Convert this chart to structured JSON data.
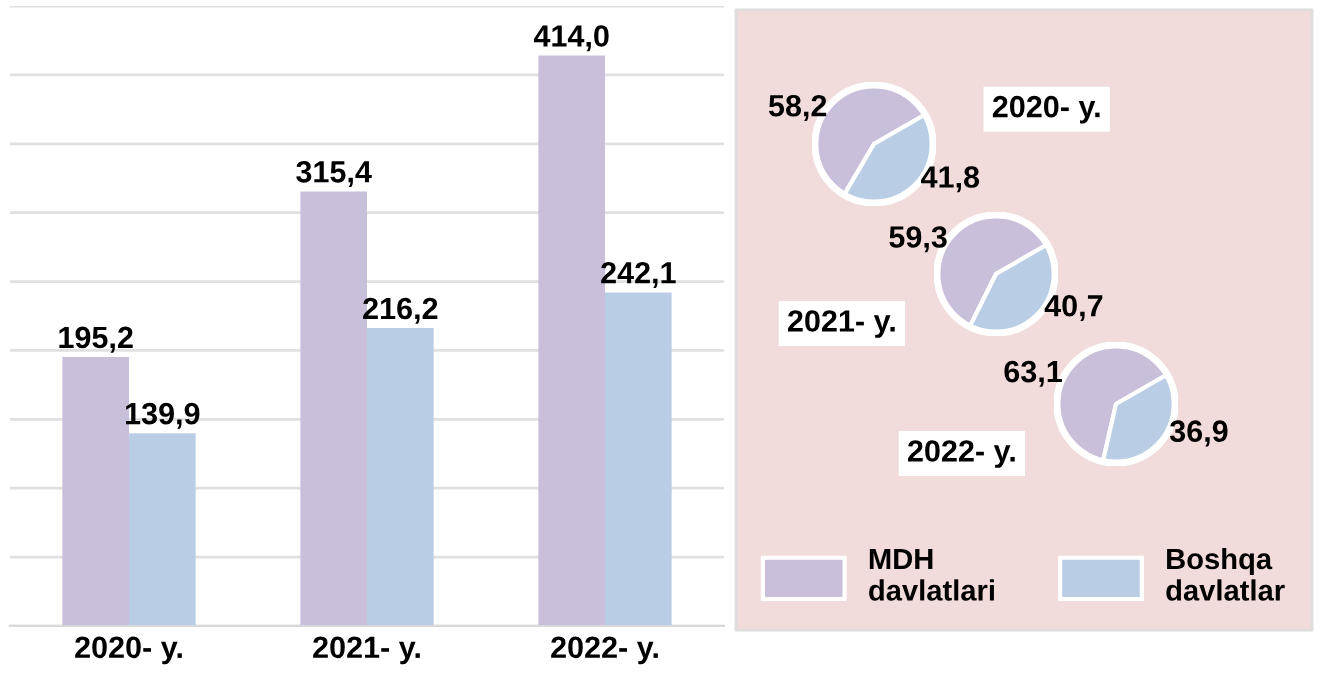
{
  "chart_data": [
    {
      "type": "bar",
      "categories": [
        "2020- y.",
        "2021- y.",
        "2022- y."
      ],
      "series": [
        {
          "color": "#c9bfdb",
          "values": [
            195.2,
            315.4,
            414.0
          ],
          "value_labels": [
            "195,2",
            "315,4",
            "414,0"
          ]
        },
        {
          "color": "#b9cde4",
          "values": [
            139.9,
            216.2,
            242.1
          ],
          "value_labels": [
            "139,9",
            "216,2",
            "242,1"
          ]
        }
      ],
      "ylim": [
        0,
        450
      ],
      "yticks": [
        {
          "value": 0,
          "label": null
        },
        {
          "value": 50,
          "label": null
        },
        {
          "value": 100,
          "label": null
        },
        {
          "value": 150,
          "label": null
        },
        {
          "value": 200,
          "label": null
        },
        {
          "value": 250,
          "label": null
        },
        {
          "value": 300,
          "label": null
        },
        {
          "value": 350,
          "label": null
        },
        {
          "value": 400,
          "label": null
        },
        {
          "value": 450,
          "label": null
        }
      ],
      "grid": "y",
      "tick_labels": "x",
      "legend": false
    },
    {
      "type": "pie",
      "title": "2020- y.",
      "categories": [
        "MDH davlatlari",
        "Boshqa davlatlar"
      ],
      "values": [
        58.2,
        41.8
      ],
      "value_labels": [
        "58,2",
        "41,8"
      ],
      "colors": [
        "#c9bfdb",
        "#b9cde4"
      ],
      "legend": "bottom"
    },
    {
      "type": "pie",
      "title": "2021- y.",
      "categories": [
        null,
        null
      ],
      "values": [
        59.3,
        40.7
      ],
      "value_labels": [
        "59,3",
        "40,7"
      ],
      "colors": [
        "#c9bfdb",
        "#b9cde4"
      ]
    },
    {
      "type": "pie",
      "title": "2022- y.",
      "categories": [
        null,
        null
      ],
      "values": [
        63.1,
        36.9
      ],
      "value_labels": [
        "63,1",
        "36,9"
      ],
      "colors": [
        "#c9bfdb",
        "#b9cde4"
      ]
    }
  ]
}
